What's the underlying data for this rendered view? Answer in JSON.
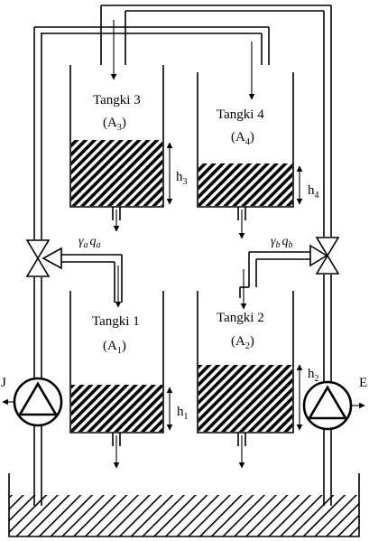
{
  "tanks": [
    {
      "name": "Tangki 3",
      "area_base": "A",
      "area_sub": "3",
      "level_base": "h",
      "level_sub": "3"
    },
    {
      "name": "Tangki 4",
      "area_base": "A",
      "area_sub": "4",
      "level_base": "h",
      "level_sub": "4"
    },
    {
      "name": "Tangki 1",
      "area_base": "A",
      "area_sub": "1",
      "level_base": "h",
      "level_sub": "1"
    },
    {
      "name": "Tangki 2",
      "area_base": "A",
      "area_sub": "2",
      "level_base": "h",
      "level_sub": "2"
    }
  ],
  "valves": {
    "left": {
      "gamma": "γ",
      "gamma_sub": "a",
      "q": "q",
      "q_sub": "a"
    },
    "right": {
      "gamma": "γ",
      "gamma_sub": "b",
      "q": "q",
      "q_sub": "b"
    }
  },
  "pumps": {
    "left_label": "J",
    "right_label": "E"
  },
  "colors": {
    "ink": "#000000",
    "background": "#ffffff"
  }
}
